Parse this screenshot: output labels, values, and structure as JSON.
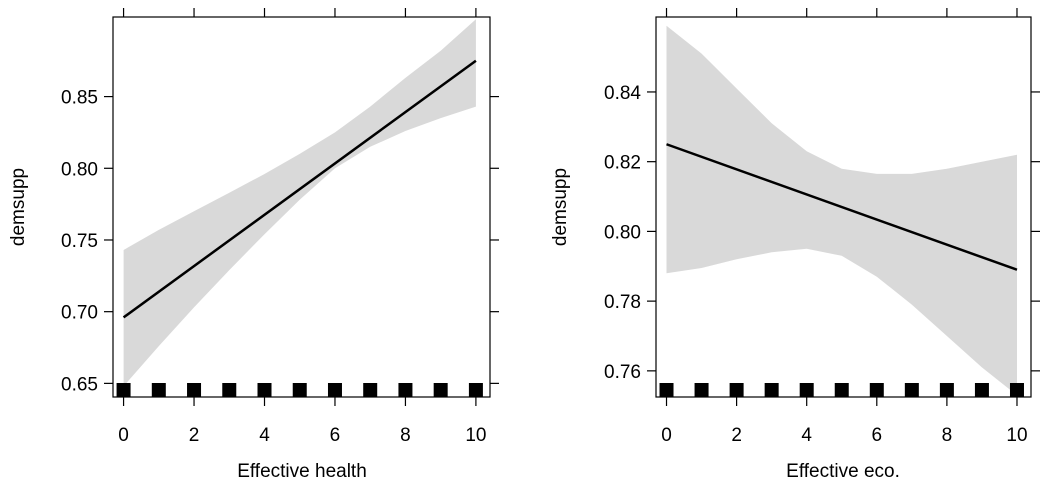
{
  "chart_data": [
    {
      "type": "line",
      "title": "",
      "xlabel": "Effective health",
      "ylabel": "demsupp",
      "xlim": [
        -0.3,
        10.4
      ],
      "ylim": [
        0.6405,
        0.9055
      ],
      "xticks": [
        0,
        2,
        4,
        6,
        8,
        10
      ],
      "xtick_labels": [
        "0",
        "2",
        "4",
        "6",
        "8",
        "10"
      ],
      "top_ticks": [
        0,
        2,
        4,
        6,
        8,
        10
      ],
      "yticks": [
        0.65,
        0.7,
        0.75,
        0.8,
        0.85
      ],
      "ytick_labels": [
        "0.65",
        "0.70",
        "0.75",
        "0.80",
        "0.85"
      ],
      "line": {
        "x": [
          0,
          10
        ],
        "y": [
          0.696,
          0.875
        ]
      },
      "band": {
        "x": [
          0,
          1,
          2,
          3,
          4,
          5,
          6,
          7,
          8,
          9,
          10
        ],
        "lower": [
          0.648,
          0.676,
          0.703,
          0.729,
          0.754,
          0.778,
          0.8,
          0.815,
          0.826,
          0.835,
          0.843
        ],
        "upper": [
          0.743,
          0.757,
          0.77,
          0.783,
          0.796,
          0.81,
          0.825,
          0.843,
          0.863,
          0.882,
          0.904
        ]
      },
      "rug": [
        0,
        1,
        2,
        3,
        4,
        5,
        6,
        7,
        8,
        9,
        10
      ],
      "grid": false,
      "colors": {
        "line": "#000000",
        "band": "#d9d9d9",
        "rug": "#000000"
      }
    },
    {
      "type": "line",
      "title": "",
      "xlabel": "Effective eco.",
      "ylabel": "demsupp",
      "xlim": [
        -0.3,
        10.4
      ],
      "ylim": [
        0.7525,
        0.8615
      ],
      "xticks": [
        0,
        2,
        4,
        6,
        8,
        10
      ],
      "xtick_labels": [
        "0",
        "2",
        "4",
        "6",
        "8",
        "10"
      ],
      "top_ticks": [
        0,
        2,
        4,
        6,
        8,
        10
      ],
      "yticks": [
        0.76,
        0.78,
        0.8,
        0.82,
        0.84
      ],
      "ytick_labels": [
        "0.76",
        "0.78",
        "0.80",
        "0.82",
        "0.84"
      ],
      "line": {
        "x": [
          0,
          10
        ],
        "y": [
          0.825,
          0.789
        ]
      },
      "band": {
        "x": [
          0,
          1,
          2,
          3,
          4,
          5,
          6,
          7,
          8,
          9,
          10
        ],
        "lower": [
          0.788,
          0.7895,
          0.792,
          0.794,
          0.795,
          0.793,
          0.787,
          0.779,
          0.77,
          0.761,
          0.753
        ],
        "upper": [
          0.859,
          0.851,
          0.841,
          0.831,
          0.823,
          0.818,
          0.8165,
          0.8165,
          0.818,
          0.82,
          0.822
        ]
      },
      "rug": [
        0,
        1,
        2,
        3,
        4,
        5,
        6,
        7,
        8,
        9,
        10
      ],
      "grid": false,
      "colors": {
        "line": "#000000",
        "band": "#d9d9d9",
        "rug": "#000000"
      }
    }
  ]
}
